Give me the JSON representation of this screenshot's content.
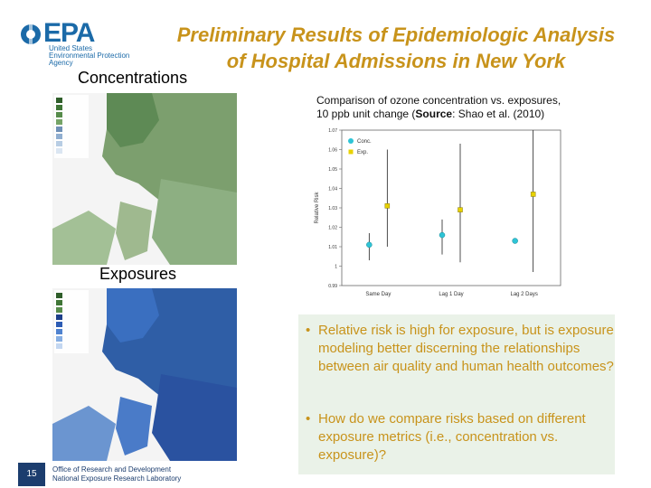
{
  "logo": {
    "wordmark": "EPA",
    "subtitle_lines": [
      "United States",
      "Environmental Protection",
      "Agency"
    ]
  },
  "title": {
    "line1": "Preliminary Results of Epidemiologic Analysis",
    "line2": "of Hospital Admissions in New York"
  },
  "maps": {
    "concentrations_label": "Concentrations",
    "exposures_label": "Exposures"
  },
  "chart_caption": {
    "line1": "Comparison of ozone concentration vs. exposures,",
    "line2_prefix": "10 ppb unit change (",
    "line2_bold": "Source",
    "line2_suffix": ": Shao et al. (2010)"
  },
  "chart_data": {
    "type": "scatter",
    "title": "",
    "xlabel": "",
    "ylabel": "Relative Risk",
    "categories": [
      "Same Day",
      "Lag 1 Day",
      "Lag 2 Days"
    ],
    "ylim": [
      0.99,
      1.07
    ],
    "yticks": [
      "0.99",
      "1",
      "1.01",
      "1.02",
      "1.03",
      "1.04",
      "1.05",
      "1.06",
      "1.07"
    ],
    "legend_position": "top-left",
    "series": [
      {
        "name": "Conc.",
        "color": "#2ec4d6",
        "values": [
          1.011,
          1.016,
          1.013
        ],
        "ci_low": [
          1.003,
          1.006,
          1.013
        ],
        "ci_high": [
          1.017,
          1.024,
          1.013
        ]
      },
      {
        "name": "Exp.",
        "color": "#e8d200",
        "values": [
          1.031,
          1.029,
          1.037
        ],
        "ci_low": [
          1.01,
          1.002,
          0.997
        ],
        "ci_high": [
          1.06,
          1.063,
          1.07
        ]
      }
    ]
  },
  "bullets": [
    "Relative risk is high for exposure, but is exposure modeling better discerning the relationships between air quality and human health outcomes?",
    "How do we compare risks based on different exposure metrics (i.e., concentration vs. exposure)?"
  ],
  "footer": {
    "page_number": "15",
    "line1": "Office of Research and Development",
    "line2": "National Exposure Research Laboratory"
  },
  "colors": {
    "title": "#c8931b",
    "logo": "#1b6aa8",
    "footer_box": "#1c3d6e",
    "bullet_bg": "#eaf2e8"
  }
}
